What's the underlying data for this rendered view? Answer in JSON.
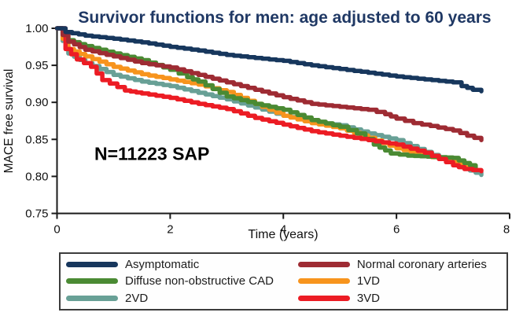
{
  "figure": {
    "title_color": "#1f3864",
    "axis_color": "#1a1a1a",
    "legend_border_color": "#3c3c3c"
  },
  "chart_data": {
    "type": "line",
    "step": true,
    "title": "Survivor functions for men: age adjusted to 60 years",
    "xlabel": "Time (years)",
    "ylabel": "MACE free survival",
    "xlim": [
      0,
      8
    ],
    "ylim": [
      0.75,
      1.0
    ],
    "xticks": [
      0,
      2,
      4,
      6,
      8
    ],
    "yticks": [
      1.0,
      0.95,
      0.9,
      0.85,
      0.8,
      0.75
    ],
    "grid": false,
    "legend_position": "bottom box, two columns",
    "annotation": {
      "text": "N=11223 SAP",
      "t": 0.66,
      "v": 0.822
    },
    "series": [
      {
        "name": "Asymptomatic",
        "color": "#17375d",
        "points": [
          [
            0,
            1.0
          ],
          [
            0.15,
            0.995
          ],
          [
            0.5,
            0.99
          ],
          [
            1,
            0.986
          ],
          [
            1.5,
            0.981
          ],
          [
            2,
            0.975
          ],
          [
            2.5,
            0.97
          ],
          [
            3,
            0.964
          ],
          [
            3.5,
            0.96
          ],
          [
            4,
            0.956
          ],
          [
            4.5,
            0.95
          ],
          [
            5,
            0.945
          ],
          [
            5.5,
            0.94
          ],
          [
            6,
            0.935
          ],
          [
            6.5,
            0.931
          ],
          [
            7,
            0.927
          ],
          [
            7.15,
            0.922
          ],
          [
            7.35,
            0.917
          ],
          [
            7.5,
            0.915
          ]
        ]
      },
      {
        "name": "Diffuse non-obstructive CAD",
        "color": "#4a8a33",
        "points": [
          [
            0,
            1.0
          ],
          [
            0.2,
            0.984
          ],
          [
            0.5,
            0.976
          ],
          [
            1,
            0.966
          ],
          [
            1.5,
            0.957
          ],
          [
            2,
            0.944
          ],
          [
            2.3,
            0.934
          ],
          [
            2.5,
            0.928
          ],
          [
            3,
            0.908
          ],
          [
            3.5,
            0.898
          ],
          [
            4,
            0.89
          ],
          [
            4.5,
            0.876
          ],
          [
            5,
            0.867
          ],
          [
            5.3,
            0.858
          ],
          [
            5.6,
            0.843
          ],
          [
            5.9,
            0.831
          ],
          [
            6.2,
            0.828
          ],
          [
            7,
            0.825
          ],
          [
            7.2,
            0.818
          ],
          [
            7.4,
            0.812
          ]
        ]
      },
      {
        "name": "2VD",
        "color": "#68a096",
        "points": [
          [
            0,
            1.0
          ],
          [
            0.2,
            0.966
          ],
          [
            0.5,
            0.953
          ],
          [
            1,
            0.937
          ],
          [
            1.5,
            0.928
          ],
          [
            2,
            0.922
          ],
          [
            2.5,
            0.913
          ],
          [
            3,
            0.904
          ],
          [
            3.5,
            0.893
          ],
          [
            4,
            0.882
          ],
          [
            4.5,
            0.874
          ],
          [
            5,
            0.869
          ],
          [
            5.5,
            0.858
          ],
          [
            6,
            0.849
          ],
          [
            6.5,
            0.833
          ],
          [
            7,
            0.817
          ],
          [
            7.3,
            0.808
          ],
          [
            7.5,
            0.802
          ]
        ]
      },
      {
        "name": "Normal coronary arteries",
        "color": "#9e2b33",
        "points": [
          [
            0,
            1.0
          ],
          [
            0.2,
            0.982
          ],
          [
            0.5,
            0.971
          ],
          [
            1,
            0.962
          ],
          [
            1.5,
            0.953
          ],
          [
            2,
            0.947
          ],
          [
            2.5,
            0.937
          ],
          [
            3,
            0.927
          ],
          [
            3.5,
            0.917
          ],
          [
            4,
            0.907
          ],
          [
            4.5,
            0.898
          ],
          [
            5,
            0.894
          ],
          [
            5.5,
            0.89
          ],
          [
            5.8,
            0.884
          ],
          [
            6,
            0.878
          ],
          [
            6.3,
            0.872
          ],
          [
            6.6,
            0.868
          ],
          [
            7,
            0.862
          ],
          [
            7.25,
            0.855
          ],
          [
            7.5,
            0.849
          ]
        ]
      },
      {
        "name": "1VD",
        "color": "#f7941d",
        "points": [
          [
            0,
            1.0
          ],
          [
            0.2,
            0.972
          ],
          [
            0.5,
            0.962
          ],
          [
            1,
            0.948
          ],
          [
            1.5,
            0.938
          ],
          [
            2,
            0.931
          ],
          [
            2.5,
            0.924
          ],
          [
            3,
            0.914
          ],
          [
            3.5,
            0.898
          ],
          [
            4,
            0.882
          ],
          [
            4.5,
            0.872
          ],
          [
            5,
            0.865
          ],
          [
            5.5,
            0.852
          ],
          [
            6,
            0.838
          ],
          [
            6.5,
            0.828
          ],
          [
            7,
            0.82
          ],
          [
            7.4,
            0.812
          ]
        ]
      },
      {
        "name": "3VD",
        "color": "#ec1c24",
        "points": [
          [
            0,
            1.0
          ],
          [
            0.15,
            0.972
          ],
          [
            0.35,
            0.958
          ],
          [
            0.6,
            0.948
          ],
          [
            0.8,
            0.93
          ],
          [
            1.2,
            0.916
          ],
          [
            1.5,
            0.912
          ],
          [
            2,
            0.906
          ],
          [
            2.5,
            0.898
          ],
          [
            3,
            0.891
          ],
          [
            3.5,
            0.879
          ],
          [
            4,
            0.87
          ],
          [
            4.5,
            0.861
          ],
          [
            5,
            0.855
          ],
          [
            5.5,
            0.849
          ],
          [
            6,
            0.843
          ],
          [
            6.5,
            0.832
          ],
          [
            7,
            0.815
          ],
          [
            7.2,
            0.81
          ],
          [
            7.5,
            0.807
          ]
        ]
      }
    ]
  }
}
